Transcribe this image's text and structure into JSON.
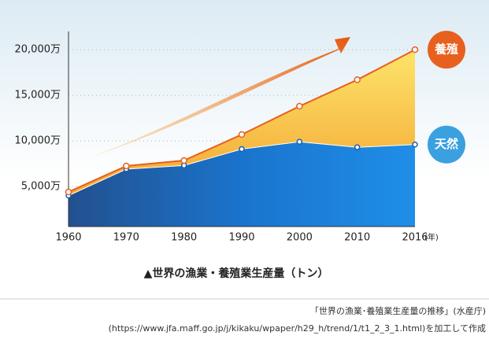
{
  "chart_data": {
    "type": "stacked-area",
    "categories": [
      "1960",
      "1970",
      "1980",
      "1990",
      "2000",
      "2010",
      "2016"
    ],
    "x_unit": "(年)",
    "series": [
      {
        "name": "天然",
        "color": "#1e88e5",
        "values": [
          4000,
          6900,
          7300,
          9100,
          9900,
          9300,
          9600
        ]
      },
      {
        "name": "養殖",
        "color": "#f08c1a",
        "values": [
          400,
          350,
          550,
          1600,
          3900,
          7400,
          10400
        ]
      }
    ],
    "ylim": [
      0,
      22000
    ],
    "yticks": [
      {
        "value": 5000,
        "label": "5,000万"
      },
      {
        "value": 10000,
        "label": "10,000万"
      },
      {
        "value": 15000,
        "label": "15,000万"
      },
      {
        "value": 20000,
        "label": "20,000万"
      }
    ],
    "grid": true,
    "caption": "▲世界の漁業・養殖業生産量（トン）",
    "source": [
      "「世界の漁業･養殖業生産量の推移」(水産庁)",
      "(https://www.jfa.maff.go.jp/j/kikaku/wpaper/h29_h/trend/1/t1_2_3_1.html)を加工して作成"
    ]
  }
}
